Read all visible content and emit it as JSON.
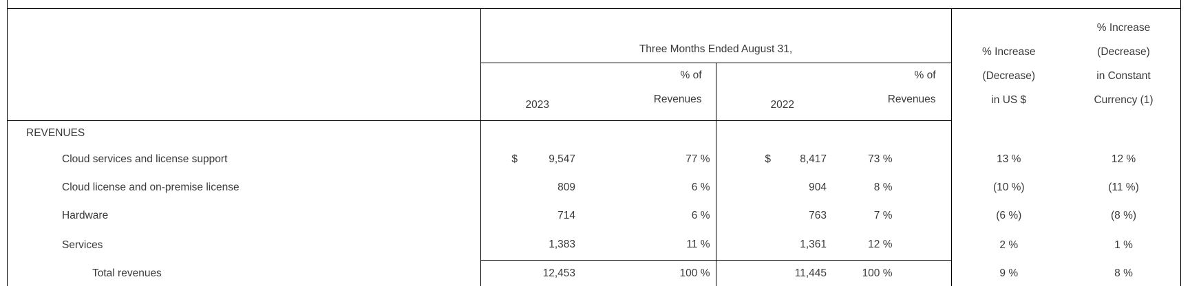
{
  "table": {
    "group_header": "Three Months Ended August 31,",
    "columns": {
      "year_2023": "2023",
      "year_2022": "2022",
      "pct_of": "% of",
      "revenues": "Revenues",
      "increase_us": [
        "% Increase",
        "(Decrease)",
        "in US $"
      ],
      "increase_cc": [
        "% Increase",
        "(Decrease)",
        "in Constant",
        "Currency (1)"
      ]
    },
    "section": "REVENUES",
    "rows": [
      {
        "label": "Cloud services and license support",
        "cur_2023": "$",
        "amt_2023": "9,547",
        "pct_2023": "77 %",
        "cur_2022": "$",
        "amt_2022": "8,417",
        "pct_2022": "73 %",
        "chg_usd": "13 %",
        "chg_cc": "12 %"
      },
      {
        "label": "Cloud license and on-premise license",
        "cur_2023": "",
        "amt_2023": "809",
        "pct_2023": "6 %",
        "cur_2022": "",
        "amt_2022": "904",
        "pct_2022": "8 %",
        "chg_usd": "(10 %)",
        "chg_cc": "(11 %)"
      },
      {
        "label": "Hardware",
        "cur_2023": "",
        "amt_2023": "714",
        "pct_2023": "6 %",
        "cur_2022": "",
        "amt_2022": "763",
        "pct_2022": "7 %",
        "chg_usd": "(6 %)",
        "chg_cc": "(8 %)"
      },
      {
        "label": "Services",
        "cur_2023": "",
        "amt_2023": "1,383",
        "pct_2023": "11 %",
        "cur_2022": "",
        "amt_2022": "1,361",
        "pct_2022": "12 %",
        "chg_usd": "2 %",
        "chg_cc": "1 %"
      }
    ],
    "total": {
      "label": "Total revenues",
      "amt_2023": "12,453",
      "pct_2023": "100 %",
      "amt_2022": "11,445",
      "pct_2022": "100 %",
      "chg_usd": "9 %",
      "chg_cc": "8 %"
    }
  },
  "colors": {
    "border": "#000000",
    "text": "#3a3a3a",
    "background": "#ffffff"
  }
}
